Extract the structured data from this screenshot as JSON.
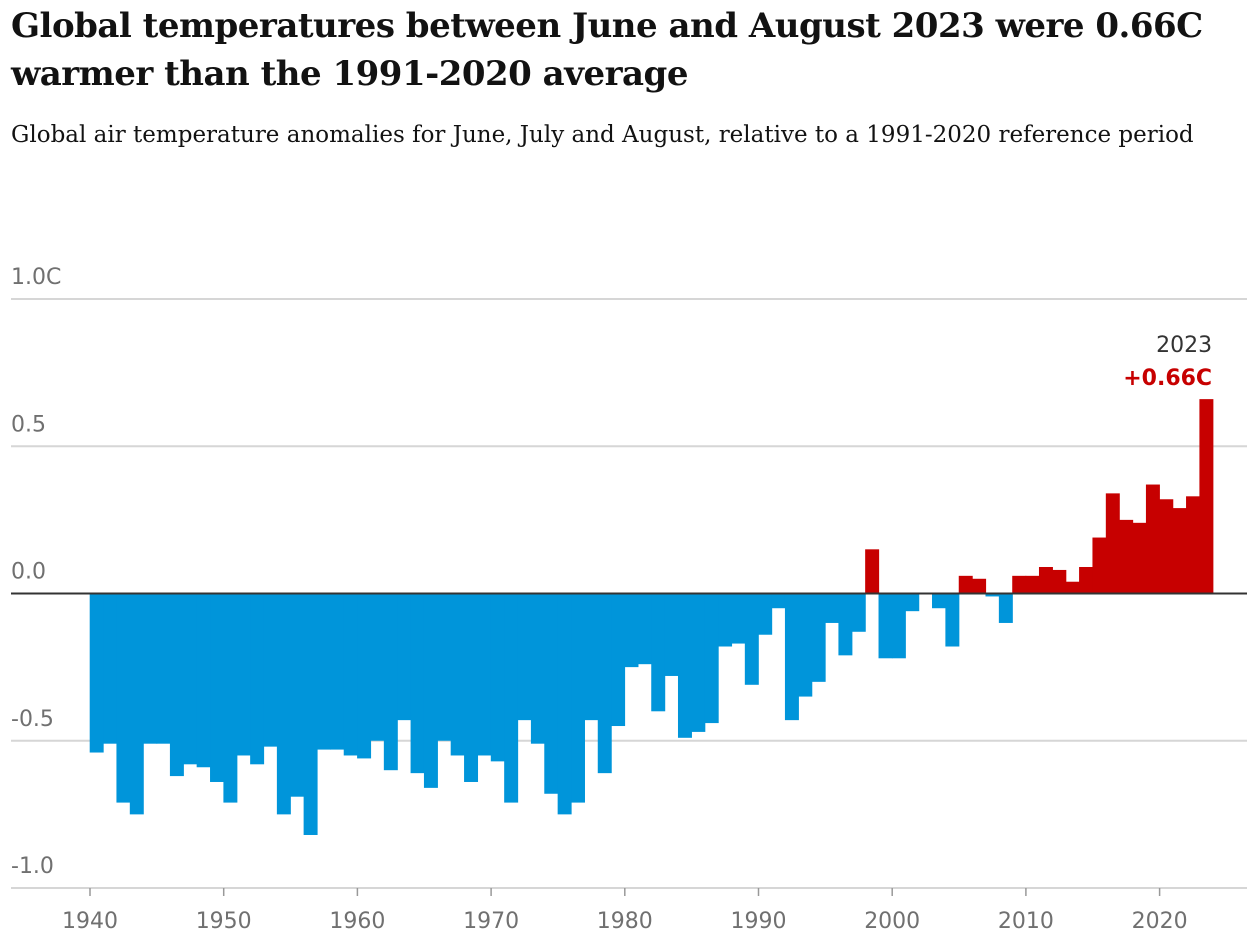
{
  "chart_data": {
    "type": "bar",
    "title": "Global temperatures between June and August 2023 were 0.66C warmer than the 1991-2020 average",
    "subtitle": "Global air temperature anomalies for June, July and August, relative to a 1991-2020 reference period",
    "y_ticks": [
      {
        "value": 1.0,
        "label": "1.0C"
      },
      {
        "value": 0.5,
        "label": "0.5"
      },
      {
        "value": 0.0,
        "label": "0.0"
      },
      {
        "value": -0.5,
        "label": "-0.5"
      },
      {
        "value": -1.0,
        "label": "-1.0"
      }
    ],
    "x_ticks": [
      {
        "value": 1940,
        "label": "1940"
      },
      {
        "value": 1950,
        "label": "1950"
      },
      {
        "value": 1960,
        "label": "1960"
      },
      {
        "value": 1970,
        "label": "1970"
      },
      {
        "value": 1980,
        "label": "1980"
      },
      {
        "value": 1990,
        "label": "1990"
      },
      {
        "value": 2000,
        "label": "2000"
      },
      {
        "value": 2010,
        "label": "2010"
      },
      {
        "value": 2020,
        "label": "2020"
      }
    ],
    "xlim": [
      1940,
      2026
    ],
    "ylim": [
      -1.0,
      1.0
    ],
    "colors": {
      "positive": "#c70000",
      "negative": "#0095da",
      "grid": "#d6d6d6",
      "zero_line": "#333333"
    },
    "annotation": {
      "year_label": "2023",
      "value_label": "+0.66C"
    },
    "x": [
      1940,
      1941,
      1942,
      1943,
      1944,
      1945,
      1946,
      1947,
      1948,
      1949,
      1950,
      1951,
      1952,
      1953,
      1954,
      1955,
      1956,
      1957,
      1958,
      1959,
      1960,
      1961,
      1962,
      1963,
      1964,
      1965,
      1966,
      1967,
      1968,
      1969,
      1970,
      1971,
      1972,
      1973,
      1974,
      1975,
      1976,
      1977,
      1978,
      1979,
      1980,
      1981,
      1982,
      1983,
      1984,
      1985,
      1986,
      1987,
      1988,
      1989,
      1990,
      1991,
      1992,
      1993,
      1994,
      1995,
      1996,
      1997,
      1998,
      1999,
      2000,
      2001,
      2002,
      2003,
      2004,
      2005,
      2006,
      2007,
      2008,
      2009,
      2010,
      2011,
      2012,
      2013,
      2014,
      2015,
      2016,
      2017,
      2018,
      2019,
      2020,
      2021,
      2022,
      2023
    ],
    "values": [
      -0.54,
      -0.51,
      -0.71,
      -0.75,
      -0.51,
      -0.51,
      -0.62,
      -0.58,
      -0.59,
      -0.64,
      -0.71,
      -0.55,
      -0.58,
      -0.52,
      -0.75,
      -0.69,
      -0.82,
      -0.53,
      -0.53,
      -0.55,
      -0.56,
      -0.5,
      -0.6,
      -0.43,
      -0.61,
      -0.66,
      -0.5,
      -0.55,
      -0.64,
      -0.55,
      -0.57,
      -0.71,
      -0.43,
      -0.51,
      -0.68,
      -0.75,
      -0.71,
      -0.43,
      -0.61,
      -0.45,
      -0.25,
      -0.24,
      -0.4,
      -0.28,
      -0.49,
      -0.47,
      -0.44,
      -0.18,
      -0.17,
      -0.31,
      -0.14,
      -0.05,
      -0.43,
      -0.35,
      -0.3,
      -0.1,
      -0.21,
      -0.13,
      0.15,
      -0.22,
      -0.22,
      -0.06,
      0.0,
      -0.05,
      -0.18,
      0.06,
      0.05,
      -0.01,
      -0.1,
      0.06,
      0.06,
      0.09,
      0.08,
      0.04,
      0.09,
      0.19,
      0.34,
      0.25,
      0.24,
      0.37,
      0.32,
      0.29,
      0.33,
      0.66
    ]
  }
}
